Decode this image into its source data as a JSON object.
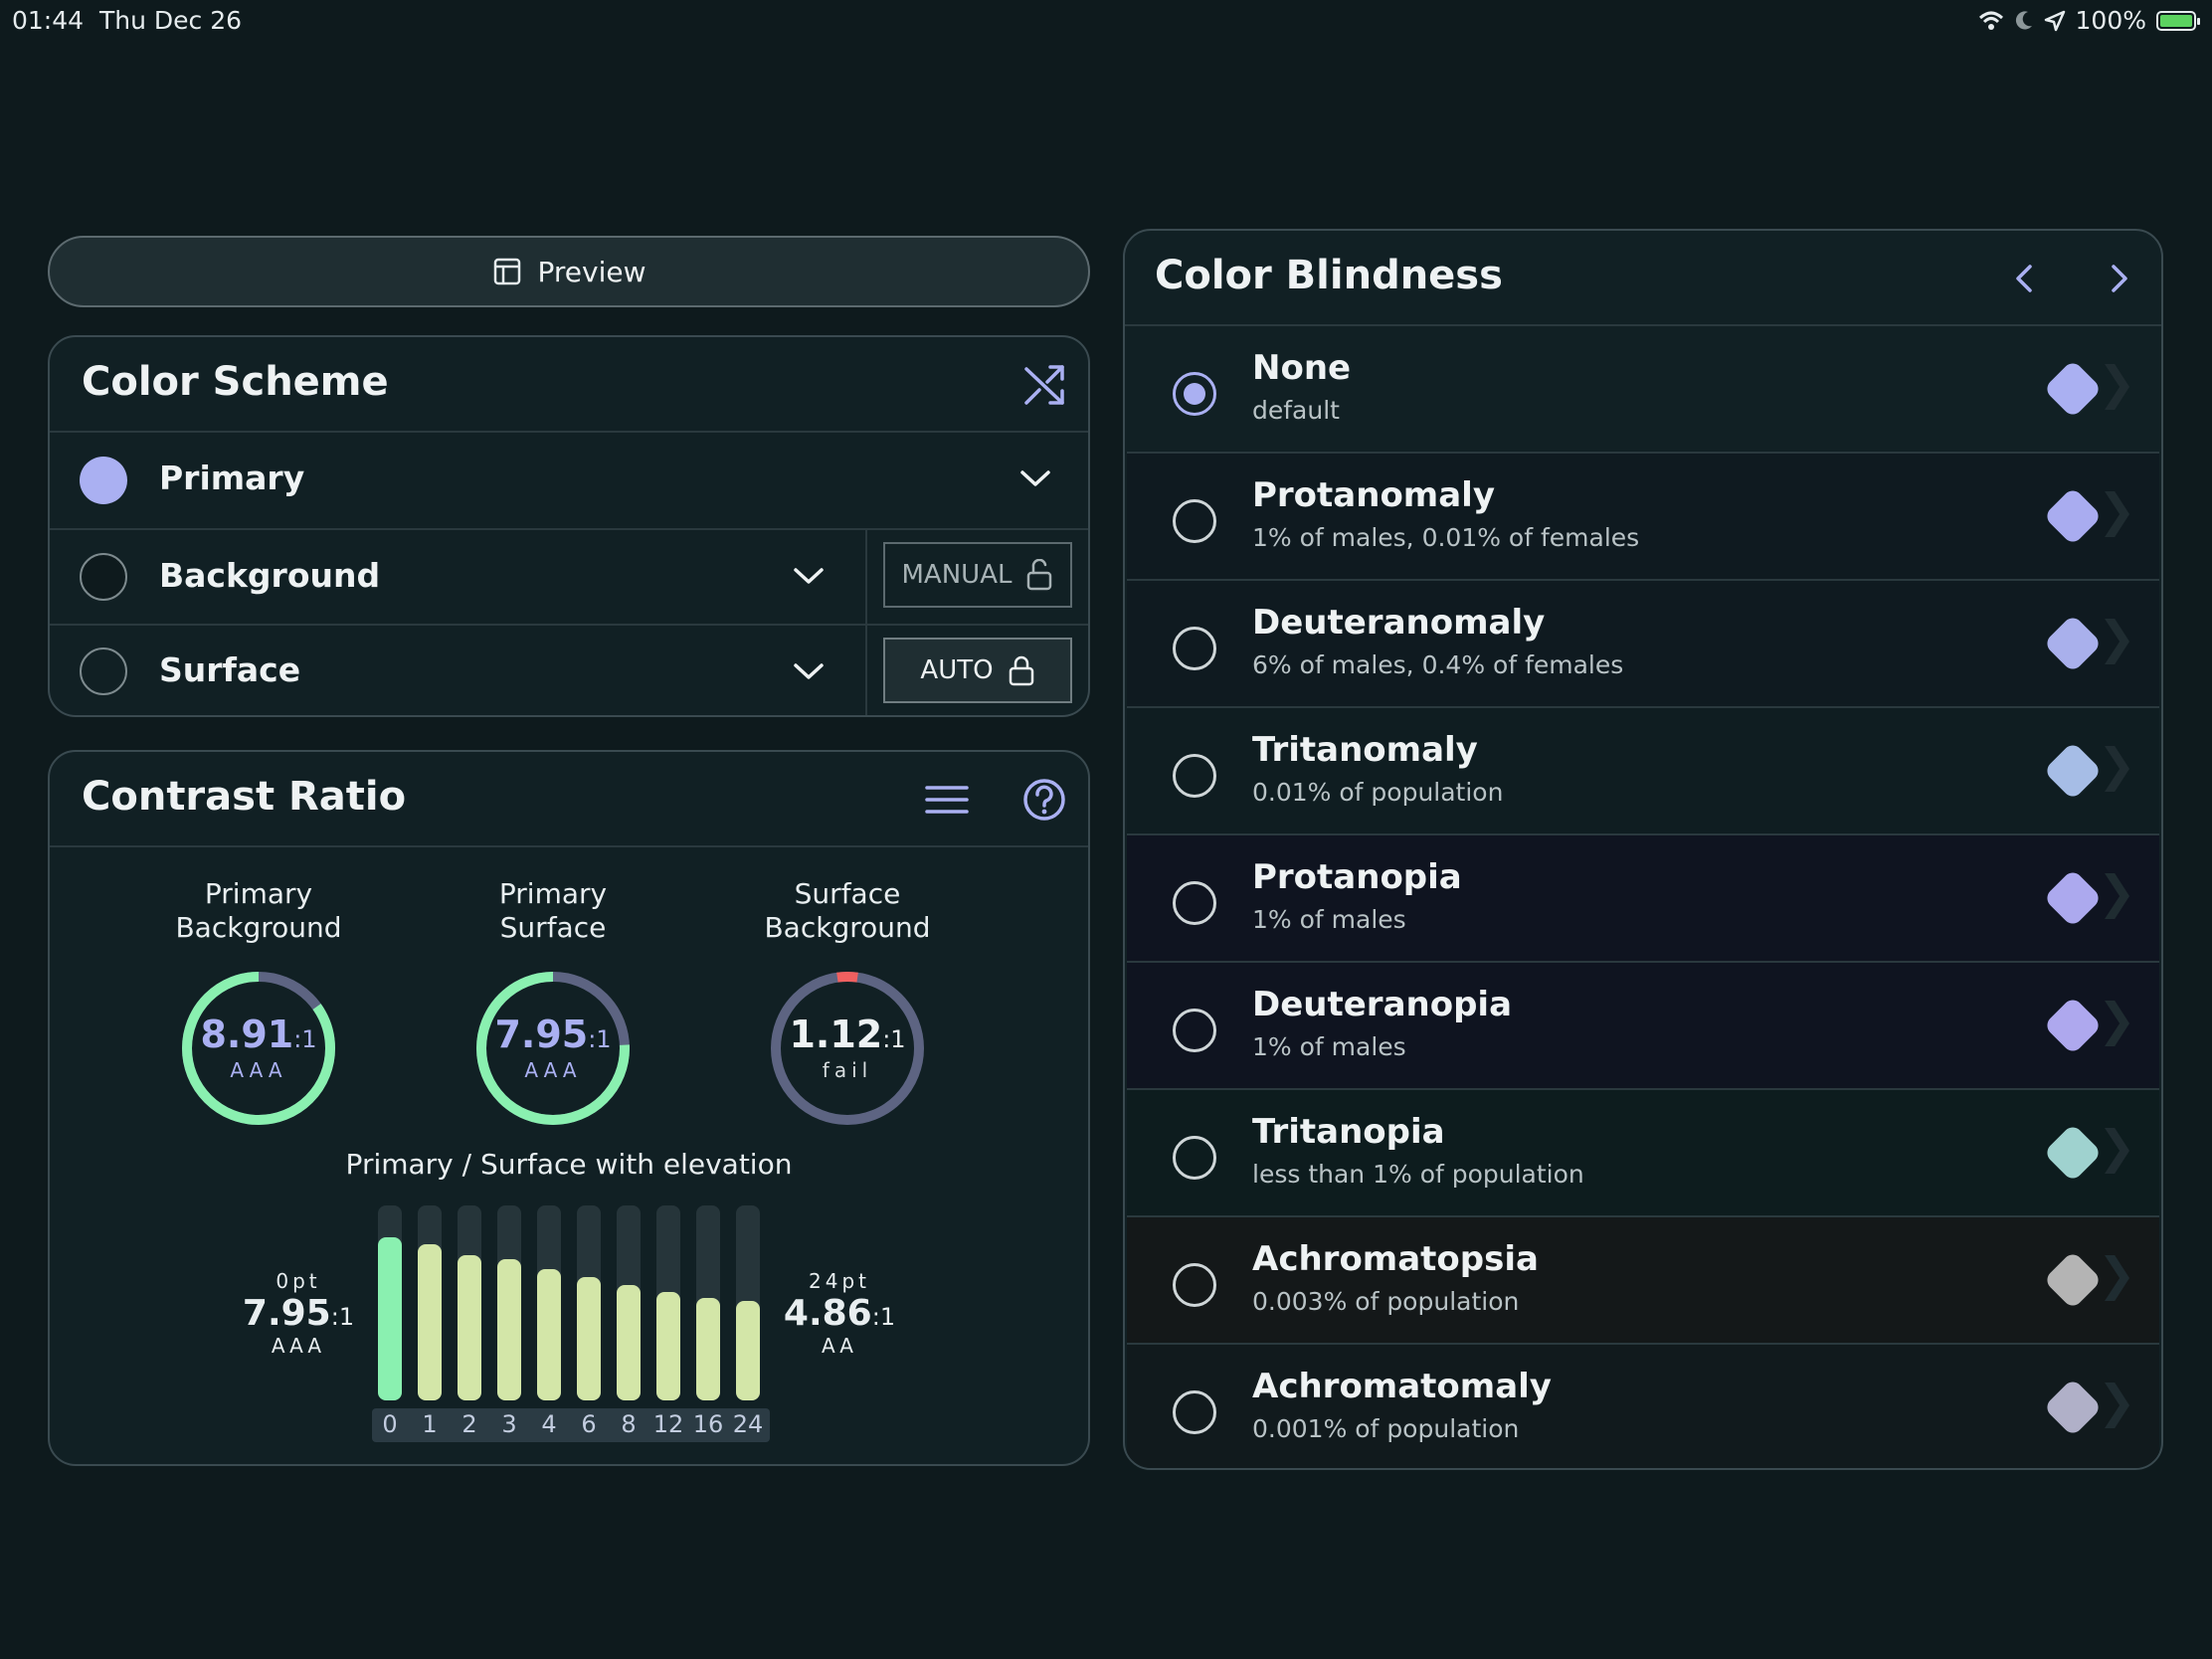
{
  "status_bar": {
    "time": "01:44",
    "date": "Thu Dec 26",
    "battery": "100%"
  },
  "preview": {
    "label": "Preview"
  },
  "color_scheme": {
    "title": "Color Scheme",
    "rows": [
      {
        "label": "Primary",
        "color": "#aab0f2"
      },
      {
        "label": "Background",
        "mode": "MANUAL"
      },
      {
        "label": "Surface",
        "mode": "AUTO"
      }
    ]
  },
  "contrast": {
    "title": "Contrast Ratio",
    "rings": [
      {
        "line1": "Primary",
        "line2": "Background",
        "value": "8.91",
        "suffix": ":1",
        "level": "AAA",
        "ratio": 8.91,
        "color": "#8af0b0"
      },
      {
        "line1": "Primary",
        "line2": "Surface",
        "value": "7.95",
        "suffix": ":1",
        "level": "AAA",
        "ratio": 7.95,
        "color": "#8af0b0"
      },
      {
        "line1": "Surface",
        "line2": "Background",
        "value": "1.12",
        "suffix": ":1",
        "level": "fail",
        "ratio": 1.12,
        "color": "#f06060"
      }
    ],
    "elevation": {
      "title": "Primary / Surface with elevation",
      "left": {
        "pt": "0pt",
        "value": "7.95",
        "suffix": ":1",
        "level": "AAA"
      },
      "right": {
        "pt": "24pt",
        "value": "4.86",
        "suffix": ":1",
        "level": "AA"
      },
      "ticks": [
        "0",
        "1",
        "2",
        "3",
        "4",
        "6",
        "8",
        "12",
        "16",
        "24"
      ],
      "ratios": [
        7.95,
        7.6,
        7.1,
        6.9,
        6.4,
        6.0,
        5.6,
        5.3,
        5.0,
        4.86
      ],
      "max_ratio": 9.5
    }
  },
  "color_blindness": {
    "title": "Color Blindness",
    "items": [
      {
        "name": "None",
        "desc": "default",
        "selected": true,
        "swatch": "#aab0f2",
        "bg": "#112024"
      },
      {
        "name": "Protanomaly",
        "desc": "1% of males, 0.01% of females",
        "selected": false,
        "swatch": "#a9acf0",
        "bg": "#0f1a20"
      },
      {
        "name": "Deuteranomaly",
        "desc": "6% of males, 0.4% of females",
        "selected": false,
        "swatch": "#a9b0ec",
        "bg": "#0f1a20"
      },
      {
        "name": "Tritanomaly",
        "desc": "0.01% of population",
        "selected": false,
        "swatch": "#a6bde6",
        "bg": "#0f1d21"
      },
      {
        "name": "Protanopia",
        "desc": "1% of males",
        "selected": false,
        "swatch": "#aca9ee",
        "bg": "#0f1420"
      },
      {
        "name": "Deuteranopia",
        "desc": "1% of males",
        "selected": false,
        "swatch": "#aea8ee",
        "bg": "#0f1420"
      },
      {
        "name": "Tritanopia",
        "desc": "less than 1% of population",
        "selected": false,
        "swatch": "#9fd2cf",
        "bg": "#0d1c1e"
      },
      {
        "name": "Achromatopsia",
        "desc": "0.003% of population",
        "selected": false,
        "swatch": "#b4b4b4",
        "bg": "#141819"
      },
      {
        "name": "Achromatomaly",
        "desc": "0.001% of population",
        "selected": false,
        "swatch": "#b0b0c8",
        "bg": "#111a1d"
      }
    ]
  }
}
